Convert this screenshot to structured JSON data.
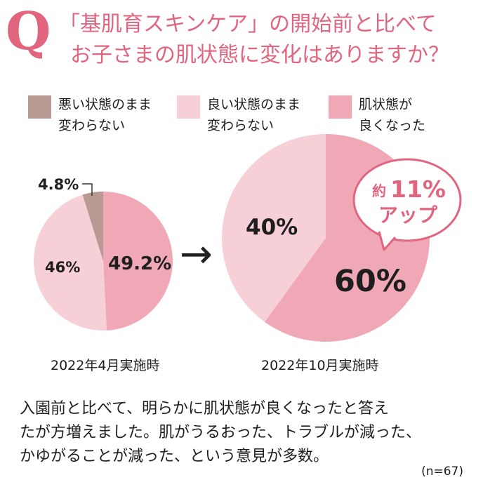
{
  "question": {
    "mark": "Q",
    "line1": "「基肌育スキンケア」の開始前と比べて",
    "line2": "お子さまの肌状態に変化はありますか？"
  },
  "legend": [
    {
      "label": "悪い状態のまま\n変わらない",
      "color": "#b99a92"
    },
    {
      "label": "良い状態のまま\n変わらない",
      "color": "#f7cfd7"
    },
    {
      "label": "肌状態が\n良くなった",
      "color": "#f0a8b6"
    }
  ],
  "colors": {
    "accent": "#e1657e",
    "arrow": "#222222",
    "text": "#1e1e1e"
  },
  "chart_data": [
    {
      "type": "pie",
      "title": "2022年4月実施時",
      "categories": [
        "悪い状態のまま変わらない",
        "良い状態のまま変わらない",
        "肌状態が良くなった"
      ],
      "values": [
        4.8,
        46,
        49.2
      ],
      "value_labels": [
        "4.8%",
        "46%",
        "49.2%"
      ]
    },
    {
      "type": "pie",
      "title": "2022年10月実施時",
      "categories": [
        "良い状態のまま変わらない",
        "肌状態が良くなった"
      ],
      "values": [
        40,
        60
      ],
      "value_labels": [
        "40%",
        "60%"
      ]
    }
  ],
  "callout": {
    "line1_prefix": "約",
    "line1_value": "11%",
    "line2": "アップ"
  },
  "arrow_symbol": "→",
  "summary": [
    "入園前と比べて、明らかに肌状態が良くなったと答え",
    "たが方増えました。肌がうるおった、トラブルが減った、",
    "かゆがることが減った、という意見が多数。"
  ],
  "sample_size": "(n=67)"
}
